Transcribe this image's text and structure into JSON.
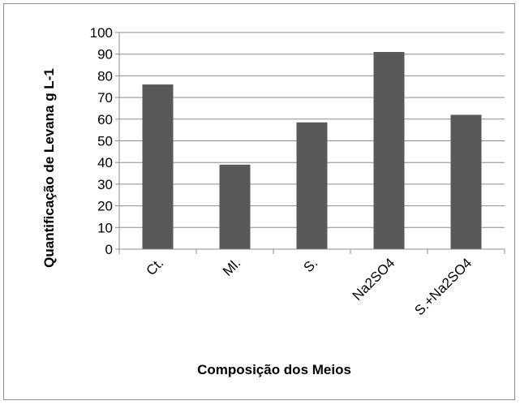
{
  "chart_data": {
    "type": "bar",
    "title": "",
    "xlabel": "Composição dos Meios",
    "ylabel": "Quantificação de Levana g L-1",
    "categories": [
      "Ct.",
      "Ml.",
      "S.",
      "Na2SO4",
      "S.+Na2SO4"
    ],
    "values": [
      76,
      39,
      58.5,
      91,
      62
    ],
    "ylim": [
      0,
      100
    ],
    "yticks": [
      "0",
      "10",
      "20",
      "30",
      "40",
      "50",
      "60",
      "70",
      "80",
      "90",
      "100"
    ],
    "grid": "horizontal",
    "legend": "none",
    "bar_color": "#595959",
    "gridline_color": "#8c8c8c",
    "axis_color": "#8c8c8c"
  }
}
